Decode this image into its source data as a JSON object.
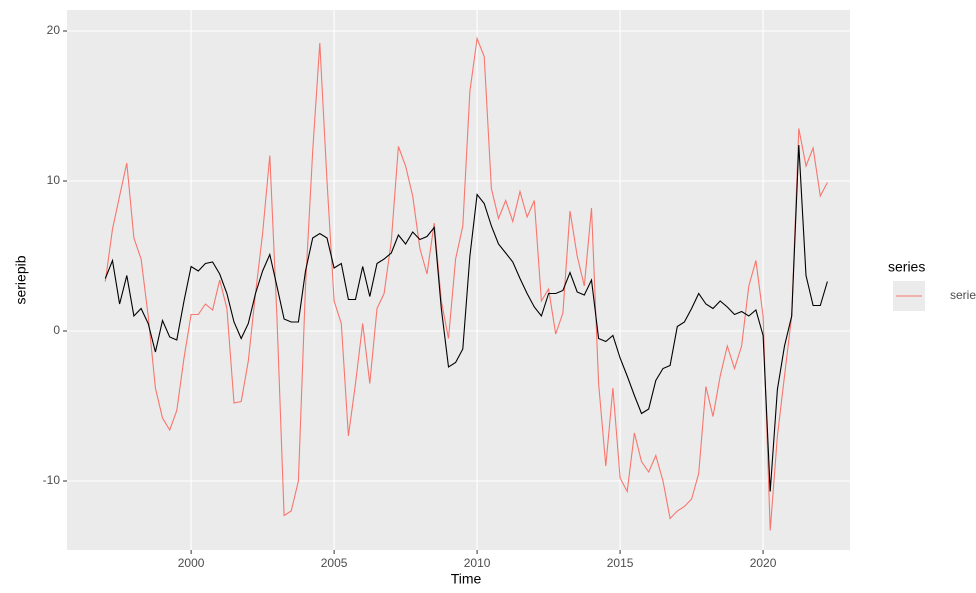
{
  "chart_data": {
    "type": "line",
    "x_label": "Time",
    "y_label": "seriepib",
    "x": [
      1997,
      1997.25,
      1997.5,
      1997.75,
      1998,
      1998.25,
      1998.5,
      1998.75,
      1999,
      1999.25,
      1999.5,
      1999.75,
      2000,
      2000.25,
      2000.5,
      2000.75,
      2001,
      2001.25,
      2001.5,
      2001.75,
      2002,
      2002.25,
      2002.5,
      2002.75,
      2003,
      2003.25,
      2003.5,
      2003.75,
      2004,
      2004.25,
      2004.5,
      2004.75,
      2005,
      2005.25,
      2005.5,
      2005.75,
      2006,
      2006.25,
      2006.5,
      2006.75,
      2007,
      2007.25,
      2007.5,
      2007.75,
      2008,
      2008.25,
      2008.5,
      2008.75,
      2009,
      2009.25,
      2009.5,
      2009.75,
      2010,
      2010.25,
      2010.5,
      2010.75,
      2011,
      2011.25,
      2011.5,
      2011.75,
      2012,
      2012.25,
      2012.5,
      2012.75,
      2013,
      2013.25,
      2013.5,
      2013.75,
      2014,
      2014.25,
      2014.5,
      2014.75,
      2015,
      2015.25,
      2015.5,
      2015.75,
      2016,
      2016.25,
      2016.5,
      2016.75,
      2017,
      2017.25,
      2017.5,
      2017.75,
      2018,
      2018.25,
      2018.5,
      2018.75,
      2019,
      2019.25,
      2019.5,
      2019.75,
      2020,
      2020.25,
      2020.5,
      2020.75,
      2021,
      2021.25,
      2021.5,
      2021.75,
      2022,
      2022.25
    ],
    "series": [
      {
        "color": "#000000",
        "values": [
          3.5,
          4.7,
          1.8,
          3.7,
          1.0,
          1.5,
          0.5,
          -1.4,
          0.7,
          -0.4,
          -0.6,
          2.0,
          4.3,
          4.0,
          4.5,
          4.6,
          3.8,
          2.5,
          0.6,
          -0.5,
          0.5,
          2.5,
          4.0,
          5.1,
          3.0,
          0.8,
          0.6,
          0.6,
          4.0,
          6.2,
          6.5,
          6.2,
          4.2,
          4.5,
          2.1,
          2.1,
          4.3,
          2.3,
          4.5,
          4.8,
          5.2,
          6.4,
          5.8,
          6.6,
          6.1,
          6.3,
          6.9,
          1.5,
          -2.4,
          -2.1,
          -1.2,
          5.0,
          9.1,
          8.5,
          7.0,
          5.8,
          5.2,
          4.6,
          3.5,
          2.5,
          1.6,
          1.0,
          2.5,
          2.5,
          2.7,
          3.9,
          2.6,
          2.4,
          3.4,
          -0.5,
          -0.7,
          -0.3,
          -1.8,
          -3.0,
          -4.3,
          -5.5,
          -5.2,
          -3.3,
          -2.5,
          -2.3,
          0.3,
          0.6,
          1.5,
          2.5,
          1.8,
          1.5,
          2.0,
          1.6,
          1.1,
          1.3,
          1.0,
          1.4,
          -0.3,
          -10.7,
          -3.9,
          -1.0,
          1.0,
          12.4,
          3.7,
          1.7,
          1.7,
          3.3
        ]
      },
      {
        "name": "seriecom",
        "color": "#f8766d",
        "values": [
          3.3,
          6.8,
          9.0,
          11.2,
          6.2,
          4.8,
          1.0,
          -3.8,
          -5.8,
          -6.6,
          -5.3,
          -1.8,
          1.1,
          1.1,
          1.8,
          1.4,
          3.4,
          1.5,
          -4.8,
          -4.7,
          -2.0,
          2.5,
          6.5,
          11.7,
          1.0,
          -12.3,
          -12.0,
          -10.0,
          3.0,
          12.0,
          19.2,
          10.0,
          2.0,
          0.5,
          -7.0,
          -3.5,
          0.5,
          -3.5,
          1.5,
          2.5,
          6.0,
          12.3,
          11.0,
          9.0,
          5.5,
          3.8,
          7.2,
          2.0,
          -0.5,
          4.8,
          7.0,
          16.0,
          19.5,
          18.3,
          9.5,
          7.5,
          8.7,
          7.3,
          9.3,
          7.6,
          8.7,
          2.0,
          2.8,
          -0.2,
          1.2,
          8.0,
          5.0,
          3.0,
          8.2,
          -3.5,
          -9.0,
          -3.8,
          -9.8,
          -10.7,
          -6.8,
          -8.7,
          -9.4,
          -8.3,
          -10.0,
          -12.5,
          -12.0,
          -11.7,
          -11.2,
          -9.5,
          -3.7,
          -5.7,
          -3.0,
          -1.0,
          -2.5,
          -1.0,
          3.0,
          4.7,
          1.0,
          -13.3,
          -7.0,
          -3.0,
          1.0,
          13.5,
          11.0,
          12.2,
          9.0,
          9.9
        ]
      }
    ],
    "xlim": [
      1995.66,
      2023.04
    ],
    "xticks": [
      2000,
      2005,
      2010,
      2015,
      2020
    ],
    "ylim": [
      -14.6,
      21.4
    ],
    "yticks": [
      -10,
      0,
      10,
      20
    ],
    "grid": true,
    "legend_title": "series",
    "legend": "right"
  }
}
